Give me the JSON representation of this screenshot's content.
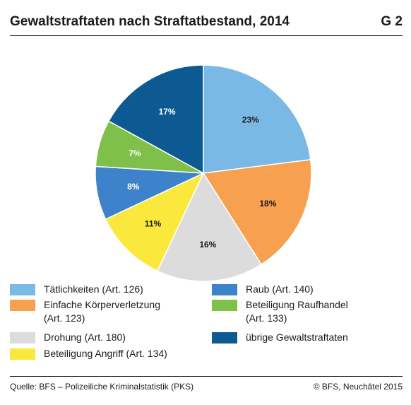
{
  "header": {
    "title": "Gewaltstraftaten nach Straftatbestand, 2014",
    "figure_number": "G 2"
  },
  "chart_data": {
    "type": "pie",
    "title": "Gewaltstraftaten nach Straftatbestand, 2014",
    "start_angle_deg": 0,
    "direction": "clockwise",
    "slices": [
      {
        "name": "Tätlichkeiten (Art. 126)",
        "legend_lines": [
          "Tätlichkeiten (Art. 126)"
        ],
        "value": 23,
        "label": "23%",
        "color": "#7ab8e6",
        "label_color": "#1a1a1a"
      },
      {
        "name": "Einfache Körperverletzung (Art. 123)",
        "legend_lines": [
          "Einfache Körperverletzung",
          "(Art. 123)"
        ],
        "value": 18,
        "label": "18%",
        "color": "#f7a050",
        "label_color": "#1a1a1a"
      },
      {
        "name": "Drohung (Art. 180)",
        "legend_lines": [
          "Drohung (Art. 180)"
        ],
        "value": 16,
        "label": "16%",
        "color": "#dcdcdc",
        "label_color": "#1a1a1a"
      },
      {
        "name": "Beteiligung Angriff (Art. 134)",
        "legend_lines": [
          "Beteiligung Angriff (Art. 134)"
        ],
        "value": 11,
        "label": "11%",
        "color": "#fbe83c",
        "label_color": "#1a1a1a"
      },
      {
        "name": "Raub (Art. 140)",
        "legend_lines": [
          "Raub (Art. 140)"
        ],
        "value": 8,
        "label": "8%",
        "color": "#3e82cc",
        "label_color": "#ffffff"
      },
      {
        "name": "Beteiligung Raufhandel (Art. 133)",
        "legend_lines": [
          "Beteiligung Raufhandel",
          "(Art. 133)"
        ],
        "value": 7,
        "label": "7%",
        "color": "#7ec04a",
        "label_color": "#ffffff"
      },
      {
        "name": "übrige Gewaltstraftaten",
        "legend_lines": [
          "übrige Gewaltstraftaten"
        ],
        "value": 17,
        "label": "17%",
        "color": "#0d5a92",
        "label_color": "#ffffff"
      }
    ]
  },
  "footer": {
    "source": "Quelle: BFS – Polizeiliche Kriminalstatistik (PKS)",
    "copyright": "© BFS, Neuchâtel 2015"
  }
}
